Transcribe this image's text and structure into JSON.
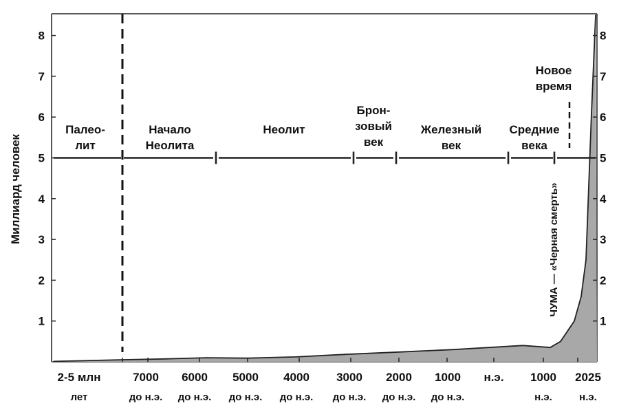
{
  "chart_data": {
    "type": "area",
    "title": "",
    "ylabel": "Миллиард человек",
    "ylim": [
      0,
      8.5
    ],
    "yticks": [
      "1",
      "2",
      "3",
      "4",
      "5",
      "6",
      "7",
      "8"
    ],
    "xticks": [
      {
        "top": "2-5 млн",
        "bottom": "лет"
      },
      {
        "top": "7000",
        "bottom": "до н.э."
      },
      {
        "top": "6000",
        "bottom": "до н.э."
      },
      {
        "top": "5000",
        "bottom": "до н.э."
      },
      {
        "top": "4000",
        "bottom": "до н.э."
      },
      {
        "top": "3000",
        "bottom": "до н.э."
      },
      {
        "top": "2000",
        "bottom": "до н.э."
      },
      {
        "top": "1000",
        "bottom": "до н.э."
      },
      {
        "top": "н.э.",
        "bottom": ""
      },
      {
        "top": "1000",
        "bottom": "н.э."
      },
      {
        "top": "2025",
        "bottom": "н.э."
      }
    ],
    "series": [
      {
        "name": "",
        "points": [
          {
            "x": "2-5 млн лет",
            "y": 0.01
          },
          {
            "x": "7000 до н.э.",
            "y": 0.05
          },
          {
            "x": "6000 до н.э.",
            "y": 0.07
          },
          {
            "x": "5000 до н.э.",
            "y": 0.1
          },
          {
            "x": "4000 до н.э.",
            "y": 0.09
          },
          {
            "x": "3000 до н.э.",
            "y": 0.12
          },
          {
            "x": "2000 до н.э.",
            "y": 0.18
          },
          {
            "x": "1000 до н.э.",
            "y": 0.24
          },
          {
            "x": "н.э.",
            "y": 0.3
          },
          {
            "x": "1000 н.э.",
            "y": 0.4
          },
          {
            "x": "1350 н.э.",
            "y": 0.35
          },
          {
            "x": "1500 н.э.",
            "y": 0.5
          },
          {
            "x": "1800 н.э.",
            "y": 1.0
          },
          {
            "x": "1900 н.э.",
            "y": 1.6
          },
          {
            "x": "1950 н.э.",
            "y": 2.5
          },
          {
            "x": "2000 н.э.",
            "y": 6.1
          },
          {
            "x": "2025 н.э.",
            "y": 8.5
          }
        ]
      }
    ],
    "periods": [
      {
        "lines": [
          "Палео-",
          "лит"
        ]
      },
      {
        "lines": [
          "Начало",
          "Неолита"
        ]
      },
      {
        "lines": [
          "Неолит"
        ]
      },
      {
        "lines": [
          "Брон-",
          "зовый",
          "век"
        ]
      },
      {
        "lines": [
          "Железный",
          "век"
        ]
      },
      {
        "lines": [
          "Средние",
          "века"
        ]
      },
      {
        "lines": [
          "Новое",
          "время"
        ]
      }
    ],
    "annotations": [
      "ЧУМА — «Черная смерть»"
    ],
    "grid": false,
    "colors": {
      "fill": "#a8a8a8",
      "line": "#222222"
    }
  }
}
